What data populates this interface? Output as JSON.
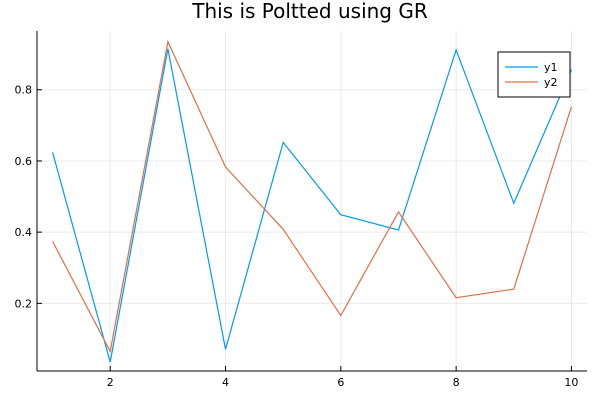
{
  "chart_data": {
    "type": "line",
    "title": "This is Poltted using GR",
    "xlabel": "",
    "ylabel": "",
    "x": [
      1,
      2,
      3,
      4,
      5,
      6,
      7,
      8,
      9,
      10
    ],
    "xlim": [
      0.73,
      10.27
    ],
    "ylim": [
      0.01,
      0.965
    ],
    "xticks": [
      2,
      4,
      6,
      8,
      10
    ],
    "yticks": [
      0.2,
      0.4,
      0.6,
      0.8
    ],
    "ytick_labels": [
      "0.2",
      "0.4",
      "0.6",
      "0.8"
    ],
    "grid": true,
    "legend": "top-right",
    "series": [
      {
        "name": "y1",
        "color": "#009af9",
        "values": [
          0.624,
          0.035,
          0.915,
          0.071,
          0.652,
          0.449,
          0.406,
          0.912,
          0.481,
          0.856
        ]
      },
      {
        "name": "y2",
        "color": "#e26f46",
        "values": [
          0.374,
          0.065,
          0.935,
          0.583,
          0.408,
          0.166,
          0.457,
          0.216,
          0.24,
          0.752
        ]
      }
    ]
  }
}
